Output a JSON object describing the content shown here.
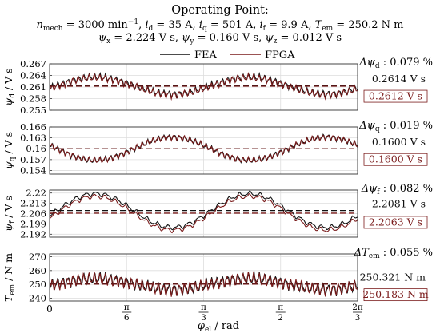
{
  "header": {
    "title": "Operating Point:",
    "line1": [
      {
        "sym": "n",
        "sub": "mech",
        "val": " = 3000 min",
        "sup": "−1",
        "tail": ","
      },
      {
        "sym": "i",
        "sub": "d",
        "val": " = 35 A,"
      },
      {
        "sym": "i",
        "sub": "q",
        "val": " = 501 A,"
      },
      {
        "sym": "i",
        "sub": "f",
        "val": " = 9.9 A,"
      },
      {
        "sym": "T",
        "sub": "em",
        "val": " = 250.2 N m"
      }
    ],
    "line2": [
      {
        "sym": "ψ",
        "sub": "x",
        "val": " = 2.224 V s,"
      },
      {
        "sym": "ψ",
        "sub": "y",
        "val": " = 0.160 V s,"
      },
      {
        "sym": "ψ",
        "sub": "z",
        "val": " = 0.012 V s"
      }
    ]
  },
  "legend": [
    {
      "name": "FEA",
      "color": "#111111"
    },
    {
      "name": "FPGA",
      "color": "#7a1a1a"
    }
  ],
  "colors": {
    "fea": "#111111",
    "fpga": "#7a1a1a",
    "grid": "#dddddd"
  },
  "chart_data": [
    {
      "type": "line",
      "ylabel_sym": "ψ",
      "ylabel_sub": "d",
      "ylabel_unit": " / V s",
      "ylim": [
        0.255,
        0.267
      ],
      "yticks": [
        0.267,
        0.264,
        0.261,
        0.258,
        0.255
      ],
      "ytick_labels": [
        "0.267",
        "0.264",
        "0.261",
        "0.258",
        "0.255"
      ],
      "delta_label": {
        "sym": "Δψ",
        "sub": "d",
        "val": " : 0.079 %"
      },
      "fea_mean": 0.2614,
      "fpga_mean": 0.2612,
      "fea_mean_label": "0.2614 V s",
      "fpga_mean_label": "0.2612 V s",
      "amp6": 0.0022,
      "ripple": 0.0017,
      "ripple_count": 58
    },
    {
      "type": "line",
      "ylabel_sym": "ψ",
      "ylabel_sub": "q",
      "ylabel_unit": " / V s",
      "ylim": [
        0.153,
        0.166
      ],
      "yticks": [
        0.166,
        0.163,
        0.16,
        0.157,
        0.154
      ],
      "ytick_labels": [
        "0.166",
        "0.163",
        "0.16",
        "0.157",
        "0.154"
      ],
      "delta_label": {
        "sym": "Δψ",
        "sub": "q",
        "val": " : 0.019 %"
      },
      "fea_mean": 0.16,
      "fpga_mean": 0.16,
      "fea_mean_label": "0.1600 V s",
      "fpga_mean_label": "0.1600 V s",
      "amp6": -0.0032,
      "ripple": 0.0015,
      "ripple_count": 58
    },
    {
      "type": "line",
      "ylabel_sym": "ψ",
      "ylabel_sub": "f",
      "ylabel_unit": " / V s",
      "ylim": [
        2.19,
        2.222
      ],
      "yticks": [
        2.22,
        2.213,
        2.206,
        2.199,
        2.192
      ],
      "ytick_labels": [
        "2.22",
        "2.213",
        "2.206",
        "2.199",
        "2.192"
      ],
      "delta_label": {
        "sym": "Δψ",
        "sub": "f",
        "val": " : 0.082 %"
      },
      "fea_mean": 2.2081,
      "fpga_mean": 2.2063,
      "fea_mean_label": "2.2081 V s",
      "fpga_mean_label": "2.2063 V s",
      "amp6": 0.0115,
      "ripple": 0.003,
      "ripple_count": 30
    },
    {
      "type": "line",
      "ylabel_sym": "T",
      "ylabel_sub": "em",
      "ylabel_unit": " / N m",
      "ylim": [
        238,
        272
      ],
      "yticks": [
        270,
        260,
        250,
        240
      ],
      "ytick_labels": [
        "270",
        "260",
        "250",
        "240"
      ],
      "delta_label": {
        "sym": "ΔT",
        "sub": "em",
        "val": " : 0.055 %"
      },
      "fea_mean": 250.321,
      "fpga_mean": 250.183,
      "fea_mean_label": "250.321 N m",
      "fpga_mean_label": "250.183 N m",
      "amp6": 4.0,
      "ripple": 8.0,
      "ripple_count": 58
    }
  ],
  "x_axis": {
    "label_sym": "φ",
    "label_sub": "el",
    "label_unit": " / rad",
    "xlim": [
      0,
      2.0944
    ],
    "ticks": [
      0,
      0.5236,
      1.0472,
      1.5708,
      2.0944
    ],
    "tick_labels": [
      {
        "plain": "0"
      },
      {
        "num": "π",
        "den": "6"
      },
      {
        "num": "π",
        "den": "3"
      },
      {
        "num": "π",
        "den": "2"
      },
      {
        "num": "2π",
        "den": "3"
      }
    ]
  }
}
